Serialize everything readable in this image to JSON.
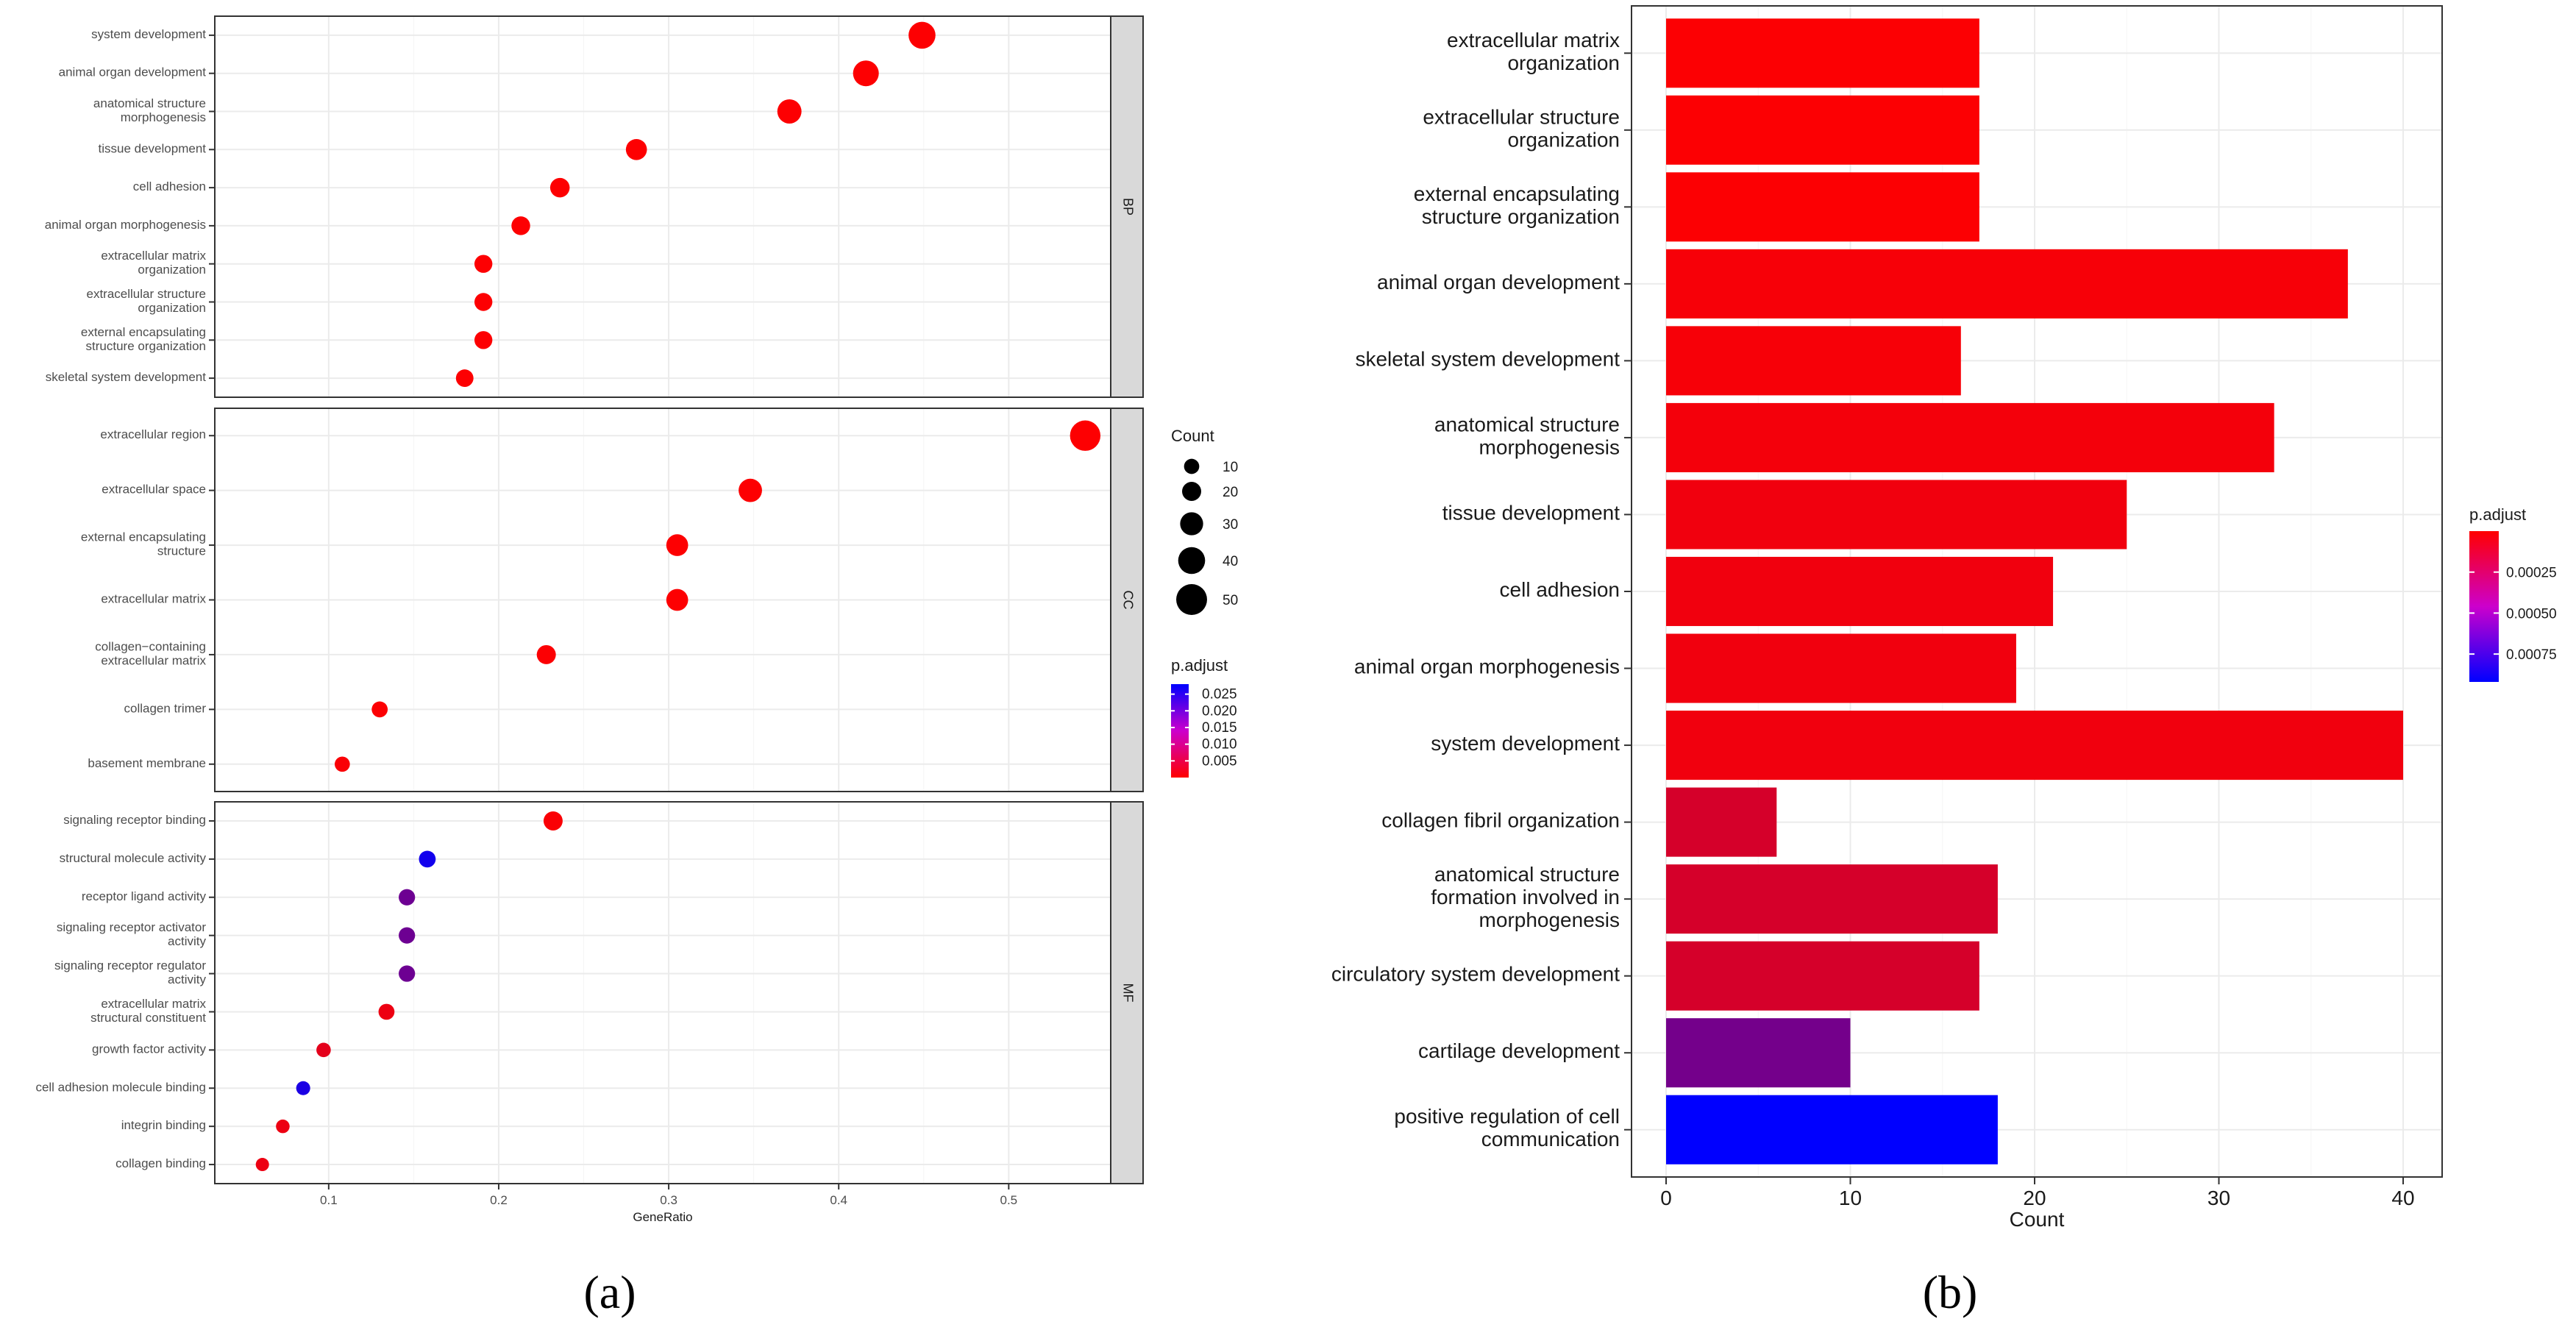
{
  "chart_data": [
    {
      "panel": "(a)",
      "type": "scatter",
      "subtype": "dot-plot",
      "xlabel": "GeneRatio",
      "ylabel": "",
      "xlim": [
        0.033,
        0.56
      ],
      "xticks": [
        0.1,
        0.2,
        0.3,
        0.4,
        0.5
      ],
      "facets": [
        {
          "name": "BP",
          "terms": [
            {
              "label": [
                "system development"
              ],
              "x": 0.449,
              "count": 40,
              "padj": 0.0002
            },
            {
              "label": [
                "animal organ development"
              ],
              "x": 0.416,
              "count": 37,
              "padj": 0.0002
            },
            {
              "label": [
                "anatomical structure",
                "morphogenesis"
              ],
              "x": 0.371,
              "count": 33,
              "padj": 0.0002
            },
            {
              "label": [
                "tissue development"
              ],
              "x": 0.281,
              "count": 25,
              "padj": 0.0002
            },
            {
              "label": [
                "cell adhesion"
              ],
              "x": 0.236,
              "count": 21,
              "padj": 0.0002
            },
            {
              "label": [
                "animal organ morphogenesis"
              ],
              "x": 0.213,
              "count": 19,
              "padj": 0.0002
            },
            {
              "label": [
                "extracellular matrix",
                "organization"
              ],
              "x": 0.191,
              "count": 17,
              "padj": 0.0002
            },
            {
              "label": [
                "extracellular structure",
                "organization"
              ],
              "x": 0.191,
              "count": 17,
              "padj": 0.0002
            },
            {
              "label": [
                "external encapsulating",
                "structure organization"
              ],
              "x": 0.191,
              "count": 17,
              "padj": 0.0002
            },
            {
              "label": [
                "skeletal system development"
              ],
              "x": 0.18,
              "count": 16,
              "padj": 0.0002
            }
          ]
        },
        {
          "name": "CC",
          "terms": [
            {
              "label": [
                "extracellular region"
              ],
              "x": 0.545,
              "count": 49,
              "padj": 0.0002
            },
            {
              "label": [
                "extracellular space"
              ],
              "x": 0.348,
              "count": 31,
              "padj": 0.0002
            },
            {
              "label": [
                "external encapsulating",
                "structure"
              ],
              "x": 0.305,
              "count": 27,
              "padj": 0.0002
            },
            {
              "label": [
                "extracellular matrix"
              ],
              "x": 0.305,
              "count": 27,
              "padj": 0.0002
            },
            {
              "label": [
                "collagen−containing",
                "extracellular matrix"
              ],
              "x": 0.228,
              "count": 20,
              "padj": 0.0003
            },
            {
              "label": [
                "collagen trimer"
              ],
              "x": 0.13,
              "count": 12,
              "padj": 0.0003
            },
            {
              "label": [
                "basement membrane"
              ],
              "x": 0.108,
              "count": 10,
              "padj": 0.0005
            }
          ]
        },
        {
          "name": "MF",
          "terms": [
            {
              "label": [
                "signaling receptor binding"
              ],
              "x": 0.232,
              "count": 20,
              "padj": 0.0005
            },
            {
              "label": [
                "structural molecule activity"
              ],
              "x": 0.158,
              "count": 14,
              "padj": 0.026
            },
            {
              "label": [
                "receptor ligand activity"
              ],
              "x": 0.146,
              "count": 13,
              "padj": 0.016
            },
            {
              "label": [
                "signaling receptor activator",
                "activity"
              ],
              "x": 0.146,
              "count": 13,
              "padj": 0.016
            },
            {
              "label": [
                "signaling receptor regulator",
                "activity"
              ],
              "x": 0.146,
              "count": 13,
              "padj": 0.016
            },
            {
              "label": [
                "extracellular matrix",
                "structural constituent"
              ],
              "x": 0.134,
              "count": 12,
              "padj": 0.002
            },
            {
              "label": [
                "growth factor activity"
              ],
              "x": 0.097,
              "count": 8,
              "padj": 0.003
            },
            {
              "label": [
                "cell adhesion molecule binding"
              ],
              "x": 0.085,
              "count": 7,
              "padj": 0.025
            },
            {
              "label": [
                "integrin binding"
              ],
              "x": 0.073,
              "count": 6,
              "padj": 0.002
            },
            {
              "label": [
                "collagen binding"
              ],
              "x": 0.061,
              "count": 5,
              "padj": 0.002
            }
          ]
        }
      ],
      "legend_count": {
        "title": "Count",
        "values": [
          10,
          20,
          30,
          40,
          50
        ],
        "labels": [
          "10",
          "20",
          "30",
          "40",
          "50"
        ]
      },
      "legend_padj": {
        "title": "p.adjust",
        "range": [
          0.0,
          0.028
        ],
        "labels": [
          "0.025",
          "0.020",
          "0.015",
          "0.010",
          "0.005"
        ],
        "values": [
          0.025,
          0.02,
          0.015,
          0.01,
          0.005
        ]
      },
      "colors": {
        "low": "#ff0000",
        "high": "#0000ff"
      }
    },
    {
      "panel": "(b)",
      "type": "bar",
      "orientation": "horizontal",
      "xlabel": "Count",
      "ylabel": "",
      "xlim": [
        0,
        40
      ],
      "xticks": [
        0,
        10,
        20,
        30,
        40
      ],
      "categories": [
        [
          "extracellular matrix",
          "organization"
        ],
        [
          "extracellular structure",
          "organization"
        ],
        [
          "external encapsulating",
          "structure organization"
        ],
        [
          "animal organ development"
        ],
        [
          "skeletal system development"
        ],
        [
          "anatomical structure",
          "morphogenesis"
        ],
        [
          "tissue development"
        ],
        [
          "cell adhesion"
        ],
        [
          "animal organ morphogenesis"
        ],
        [
          "system development"
        ],
        [
          "collagen fibril organization"
        ],
        [
          "anatomical structure",
          "formation involved in",
          "morphogenesis"
        ],
        [
          "circulatory system development"
        ],
        [
          "cartilage development"
        ],
        [
          "positive regulation of cell",
          "communication"
        ]
      ],
      "values": [
        17,
        17,
        17,
        37,
        16,
        33,
        25,
        21,
        19,
        40,
        6,
        18,
        17,
        10,
        18
      ],
      "padj": [
        1e-05,
        1e-05,
        1e-05,
        3e-05,
        3e-05,
        4e-05,
        5e-05,
        5e-05,
        5e-05,
        5e-05,
        0.00015,
        0.00015,
        0.00015,
        0.0005,
        0.00092
      ],
      "legend_padj": {
        "title": "p.adjust",
        "range": [
          0,
          0.00092
        ],
        "labels": [
          "0.00025",
          "0.00050",
          "0.00075"
        ],
        "values": [
          0.00025,
          0.0005,
          0.00075
        ]
      },
      "colors": {
        "low": "#ff0000",
        "high": "#0000ff"
      }
    }
  ],
  "panel_labels": {
    "a": "(a)",
    "b": "(b)"
  }
}
